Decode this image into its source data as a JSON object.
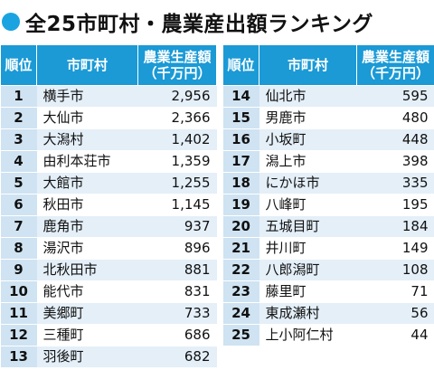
{
  "title": "全25市町村・農業産出額ランキング",
  "colors": {
    "accent": "#1aa3e0",
    "header_bg": "#1b9ad6",
    "rank_bg": "#cfe3f2",
    "row_shade": "#e4eff8",
    "row_plain": "#ffffff"
  },
  "headers": {
    "rank": "順位",
    "municipality": "市町村",
    "output_line1": "農業生産額",
    "output_line2": "（千万円）"
  },
  "chart_data": {
    "type": "table",
    "title": "全25市町村・農業産出額ランキング",
    "columns": [
      "順位",
      "市町村",
      "農業生産額（千万円）"
    ],
    "rows": [
      {
        "rank": "1",
        "name": "横手市",
        "value": "2,956"
      },
      {
        "rank": "2",
        "name": "大仙市",
        "value": "2,366"
      },
      {
        "rank": "3",
        "name": "大潟村",
        "value": "1,402"
      },
      {
        "rank": "4",
        "name": "由利本荘市",
        "value": "1,359"
      },
      {
        "rank": "5",
        "name": "大館市",
        "value": "1,255"
      },
      {
        "rank": "6",
        "name": "秋田市",
        "value": "1,145"
      },
      {
        "rank": "7",
        "name": "鹿角市",
        "value": "937"
      },
      {
        "rank": "8",
        "name": "湯沢市",
        "value": "896"
      },
      {
        "rank": "9",
        "name": "北秋田市",
        "value": "881"
      },
      {
        "rank": "10",
        "name": "能代市",
        "value": "831"
      },
      {
        "rank": "11",
        "name": "美郷町",
        "value": "733"
      },
      {
        "rank": "12",
        "name": "三種町",
        "value": "686"
      },
      {
        "rank": "13",
        "name": "羽後町",
        "value": "682"
      },
      {
        "rank": "14",
        "name": "仙北市",
        "value": "595"
      },
      {
        "rank": "15",
        "name": "男鹿市",
        "value": "480"
      },
      {
        "rank": "16",
        "name": "小坂町",
        "value": "448"
      },
      {
        "rank": "17",
        "name": "潟上市",
        "value": "398"
      },
      {
        "rank": "18",
        "name": "にかほ市",
        "value": "335"
      },
      {
        "rank": "19",
        "name": "八峰町",
        "value": "195"
      },
      {
        "rank": "20",
        "name": "五城目町",
        "value": "184"
      },
      {
        "rank": "21",
        "name": "井川町",
        "value": "149"
      },
      {
        "rank": "22",
        "name": "八郎潟町",
        "value": "108"
      },
      {
        "rank": "23",
        "name": "藤里町",
        "value": "71"
      },
      {
        "rank": "24",
        "name": "東成瀬村",
        "value": "56"
      },
      {
        "rank": "25",
        "name": "上小阿仁村",
        "value": "44"
      }
    ]
  }
}
